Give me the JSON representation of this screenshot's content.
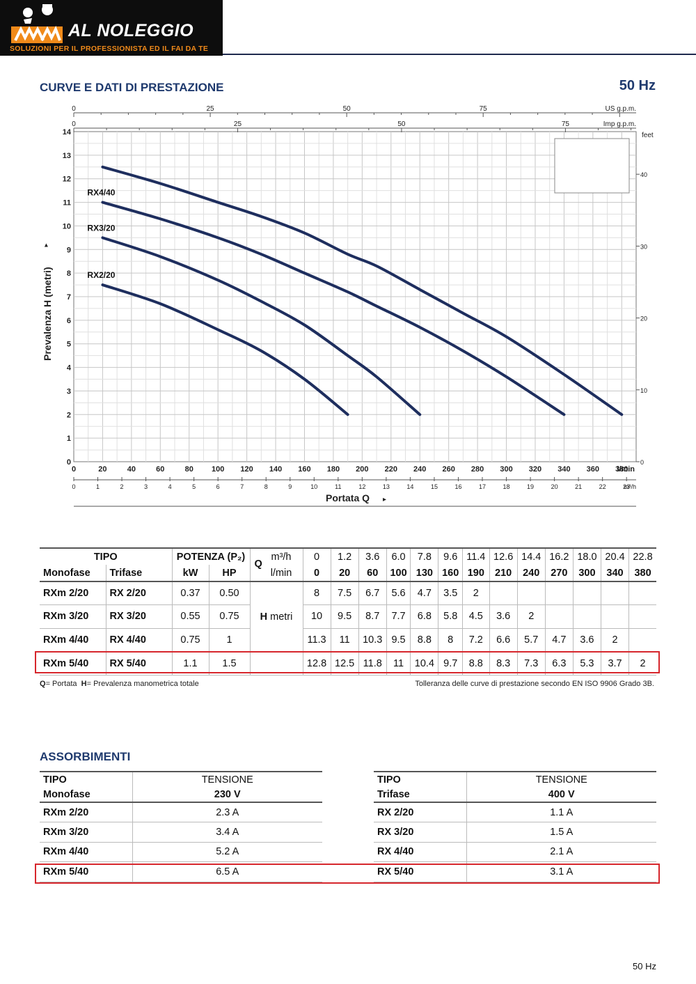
{
  "header": {
    "brand": "AL NOLEGGIO",
    "tagline": "SOLUZIONI PER IL PROFESSIONISTA ED IL FAI DA TE",
    "colors": {
      "bar": "#0d0d0d",
      "accent": "#f08a1a",
      "title": "#1f3a6e"
    }
  },
  "section1": {
    "title": "CURVE E DATI DI PRESTAZIONE",
    "frequency": "50 Hz"
  },
  "chart_data": {
    "type": "line",
    "ylabel": "Prevalenza H (metri)",
    "xlabel": "Portata Q",
    "xunit": "l/min",
    "ylim": [
      0,
      14
    ],
    "xlim": [
      0,
      390
    ],
    "y_ticks": [
      "0",
      "1",
      "2",
      "3",
      "4",
      "5",
      "6",
      "7",
      "8",
      "9",
      "10",
      "11",
      "12",
      "13",
      "14"
    ],
    "x_ticks_lmin": [
      "0",
      "20",
      "40",
      "60",
      "80",
      "100",
      "120",
      "140",
      "160",
      "180",
      "200",
      "220",
      "240",
      "260",
      "280",
      "300",
      "320",
      "340",
      "360",
      "380"
    ],
    "x_ticks_m3h": [
      "0",
      "1",
      "2",
      "3",
      "4",
      "5",
      "6",
      "7",
      "8",
      "9",
      "10",
      "11",
      "12",
      "13",
      "14",
      "15",
      "16",
      "17",
      "18",
      "19",
      "20",
      "21",
      "22",
      "23"
    ],
    "x_m3h_unit": "m³/h",
    "top_us_ticks": [
      "0",
      "25",
      "50",
      "75"
    ],
    "top_us_unit": "US g.p.m.",
    "top_imp_ticks": [
      "0",
      "25",
      "50",
      "75"
    ],
    "top_imp_unit": "Imp g.p.m.",
    "right_feet_ticks": [
      "0",
      "10",
      "20",
      "30",
      "40"
    ],
    "right_unit": "feet",
    "grid": true,
    "series": [
      {
        "name": "RX2/20",
        "x": [
          20,
          60,
          100,
          130,
          160,
          190
        ],
        "y": [
          7.5,
          6.7,
          5.6,
          4.7,
          3.5,
          2
        ]
      },
      {
        "name": "RX3/20",
        "x": [
          20,
          60,
          100,
          130,
          160,
          190,
          210,
          240
        ],
        "y": [
          9.5,
          8.7,
          7.7,
          6.8,
          5.8,
          4.5,
          3.6,
          2
        ]
      },
      {
        "name": "RX4/40",
        "x": [
          20,
          60,
          100,
          130,
          160,
          190,
          210,
          240,
          270,
          300,
          340
        ],
        "y": [
          11,
          10.3,
          9.5,
          8.8,
          8,
          7.2,
          6.6,
          5.7,
          4.7,
          3.6,
          2
        ]
      },
      {
        "name": "",
        "x": [
          20,
          60,
          100,
          130,
          160,
          190,
          210,
          240,
          270,
          300,
          340,
          380
        ],
        "y": [
          12.5,
          11.8,
          11,
          10.4,
          9.7,
          8.8,
          8.3,
          7.3,
          6.3,
          5.3,
          3.7,
          2
        ]
      }
    ]
  },
  "perf_table": {
    "h_tipo": "TIPO",
    "h_potenza": "POTENZA (P₂)",
    "h_q": "Q",
    "h_monofase": "Monofase",
    "h_trifase": "Trifase",
    "h_kw": "kW",
    "h_hp": "HP",
    "h_m3h": "m³/h",
    "h_lmin": "l/min",
    "h_metri_bold": "H",
    "h_metri": "metri",
    "m3h": [
      "0",
      "1.2",
      "3.6",
      "6.0",
      "7.8",
      "9.6",
      "11.4",
      "12.6",
      "14.4",
      "16.2",
      "18.0",
      "20.4",
      "22.8"
    ],
    "lmin": [
      "0",
      "20",
      "60",
      "100",
      "130",
      "160",
      "190",
      "210",
      "240",
      "270",
      "300",
      "340",
      "380"
    ],
    "rows": [
      {
        "mono": "RXm 2/20",
        "tri": "RX 2/20",
        "kw": "0.37",
        "hp": "0.50",
        "h": [
          "8",
          "7.5",
          "6.7",
          "5.6",
          "4.7",
          "3.5",
          "2",
          "",
          "",
          "",
          "",
          "",
          ""
        ]
      },
      {
        "mono": "RXm 3/20",
        "tri": "RX 3/20",
        "kw": "0.55",
        "hp": "0.75",
        "h": [
          "10",
          "9.5",
          "8.7",
          "7.7",
          "6.8",
          "5.8",
          "4.5",
          "3.6",
          "2",
          "",
          "",
          "",
          ""
        ]
      },
      {
        "mono": "RXm 4/40",
        "tri": "RX 4/40",
        "kw": "0.75",
        "hp": "1",
        "h": [
          "11.3",
          "11",
          "10.3",
          "9.5",
          "8.8",
          "8",
          "7.2",
          "6.6",
          "5.7",
          "4.7",
          "3.6",
          "2",
          ""
        ]
      },
      {
        "mono": "RXm 5/40",
        "tri": "RX 5/40",
        "kw": "1.1",
        "hp": "1.5",
        "h": [
          "12.8",
          "12.5",
          "11.8",
          "11",
          "10.4",
          "9.7",
          "8.8",
          "8.3",
          "7.3",
          "6.3",
          "5.3",
          "3.7",
          "2"
        ]
      }
    ],
    "highlight_color": "#d6262c"
  },
  "notes": {
    "q_key": "Q",
    "q_text": "= Portata",
    "h_key": "H",
    "h_text": "= Prevalenza manometrica totale",
    "tolerance": "Tolleranza delle curve di prestazione secondo EN ISO 9906 Grado 3B."
  },
  "section2": {
    "title": "ASSORBIMENTI"
  },
  "abs_mono": {
    "h_tipo": "TIPO",
    "h_sub": "Monofase",
    "h_tensione": "TENSIONE",
    "h_volt": "230 V",
    "rows": [
      {
        "model": "RXm 2/20",
        "amp": "2.3 A"
      },
      {
        "model": "RXm 3/20",
        "amp": "3.4 A"
      },
      {
        "model": "RXm 4/40",
        "amp": "5.2 A"
      },
      {
        "model": "RXm 5/40",
        "amp": "6.5 A"
      }
    ]
  },
  "abs_tri": {
    "h_tipo": "TIPO",
    "h_sub": "Trifase",
    "h_tensione": "TENSIONE",
    "h_volt": "400 V",
    "rows": [
      {
        "model": "RX 2/20",
        "amp": "1.1 A"
      },
      {
        "model": "RX 3/20",
        "amp": "1.5 A"
      },
      {
        "model": "RX 4/40",
        "amp": "2.1 A"
      },
      {
        "model": "RX 5/40",
        "amp": "3.1 A"
      }
    ]
  },
  "footer": {
    "frequency": "50 Hz"
  }
}
